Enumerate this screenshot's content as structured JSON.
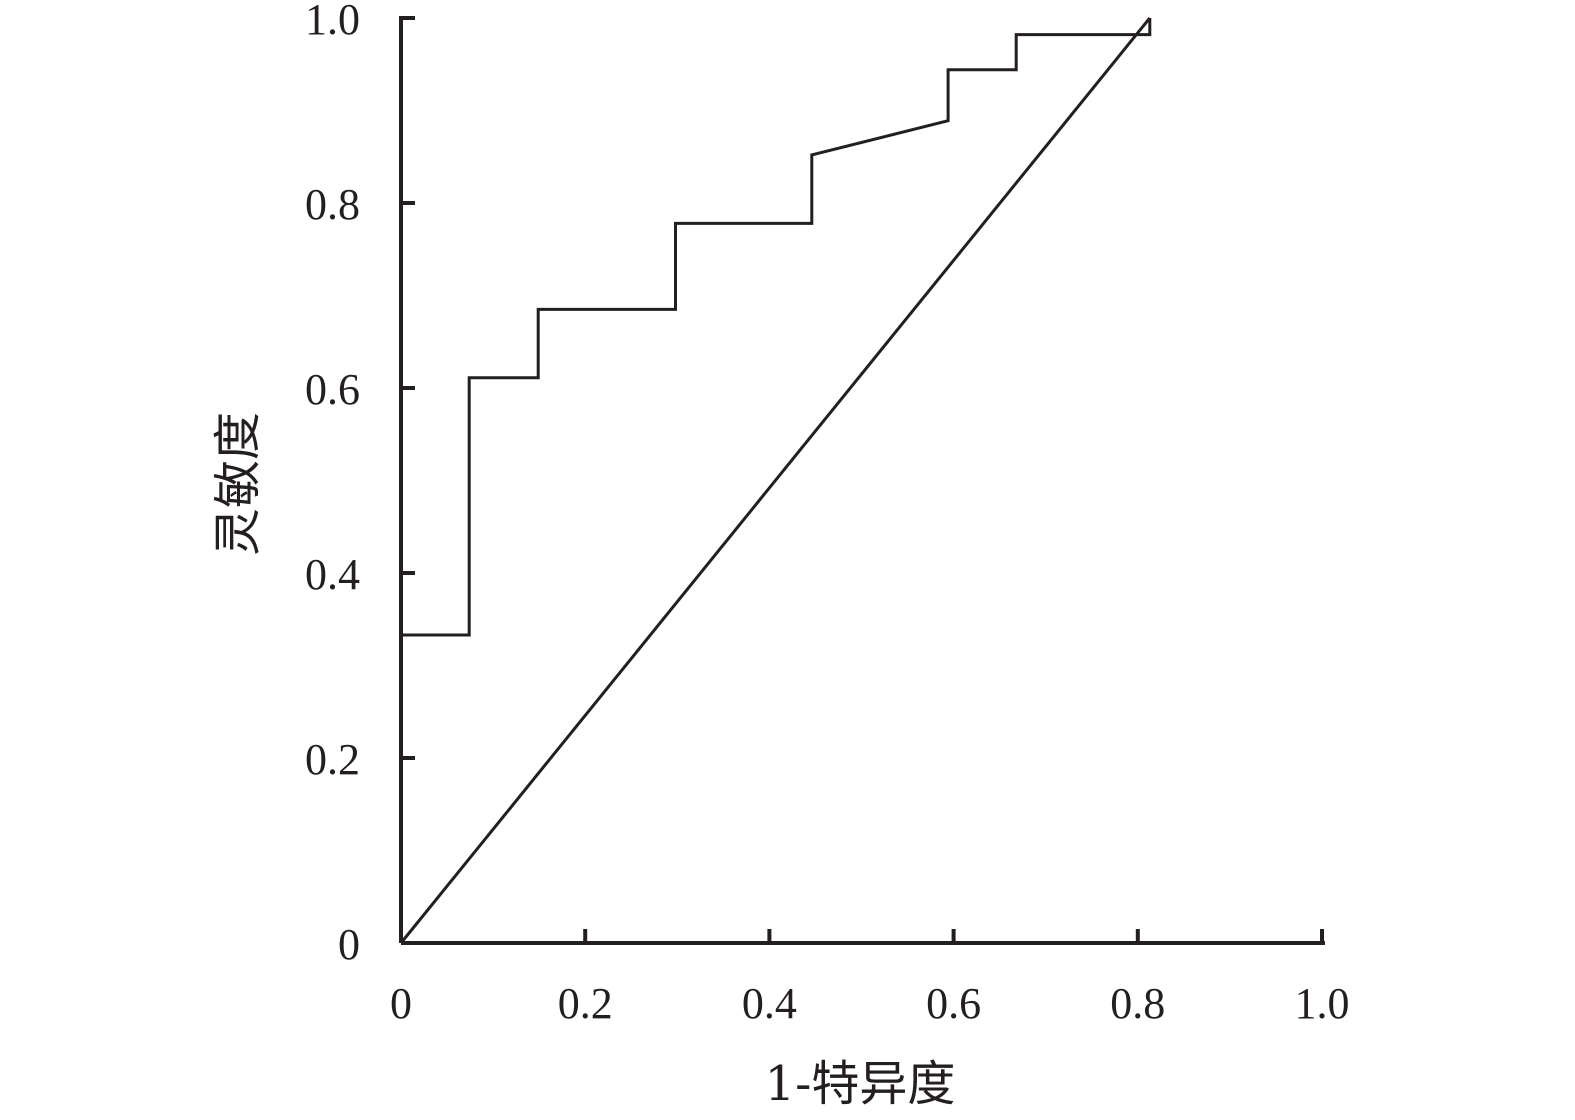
{
  "chart_data": {
    "type": "line",
    "title": "",
    "xlabel": "1-特异度",
    "ylabel": "灵敏度",
    "xlim": [
      0,
      1.0
    ],
    "ylim": [
      0,
      1.0
    ],
    "x_ticks": [
      {
        "value": 0,
        "label": "0"
      },
      {
        "value": 0.2,
        "label": "0.2"
      },
      {
        "value": 0.4,
        "label": "0.4"
      },
      {
        "value": 0.6,
        "label": "0.6"
      },
      {
        "value": 0.8,
        "label": "0.8"
      },
      {
        "value": 1.0,
        "label": "1.0"
      }
    ],
    "y_ticks": [
      {
        "value": 0,
        "label": "0"
      },
      {
        "value": 0.2,
        "label": "0.2"
      },
      {
        "value": 0.4,
        "label": "0.4"
      },
      {
        "value": 0.6,
        "label": "0.6"
      },
      {
        "value": 0.8,
        "label": "0.8"
      },
      {
        "value": 1.0,
        "label": "1.0"
      }
    ],
    "grid": false,
    "legend": "none",
    "line_color": "#231f20",
    "series": [
      {
        "x": [
          0,
          0,
          0.074,
          0.074,
          0.149,
          0.149,
          0.298,
          0.298,
          0.446,
          0.446,
          0.594,
          0.594,
          0.668,
          0.668,
          0.813,
          0.813
        ],
        "y": [
          0,
          0.333,
          0.333,
          0.611,
          0.611,
          0.685,
          0.685,
          0.778,
          0.778,
          0.852,
          0.889,
          0.944,
          0.944,
          0.982,
          0.982,
          1.0
        ]
      },
      {
        "x": [
          0,
          0.813
        ],
        "y": [
          0,
          1.0
        ]
      }
    ]
  }
}
